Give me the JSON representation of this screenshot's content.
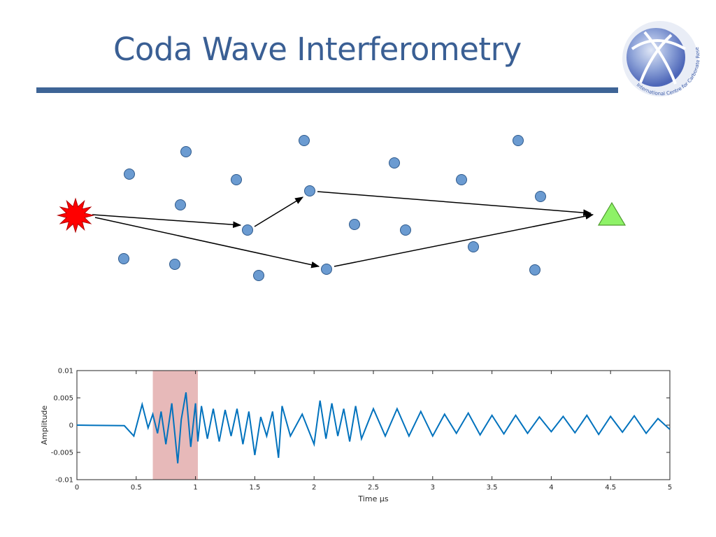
{
  "slide": {
    "title": "Coda Wave Interferometry",
    "logo_text": "International Centre for Carbonate Reservoirs"
  },
  "colors": {
    "title": "#3a5f94",
    "rule": "#3e6496",
    "scatterer_fill": "#6b9bd1",
    "scatterer_stroke": "#2f5a8c",
    "source": "#ff0000",
    "receiver": "#8ef267",
    "signal": "#0072bd",
    "window": "#e3adad"
  },
  "diagram": {
    "source_label": "source",
    "receiver_label": "receiver",
    "scatterer_count": 20
  },
  "chart_data": {
    "type": "line",
    "title": "",
    "xlabel": "Time μs",
    "ylabel": "Amplitude",
    "xlim": [
      0,
      5
    ],
    "ylim": [
      -0.01,
      0.01
    ],
    "xticks": [
      "0",
      "0.5",
      "1",
      "1.5",
      "2",
      "2.5",
      "3",
      "3.5",
      "4",
      "4.5",
      "5"
    ],
    "yticks": [
      "0.01",
      "0.005",
      "0",
      "-0.005",
      "-0.01"
    ],
    "grid": false,
    "highlight_window": {
      "x_start": 0.64,
      "x_end": 1.02
    },
    "series": [
      {
        "name": "",
        "x": [
          0,
          0.4,
          0.48,
          0.55,
          0.6,
          0.64,
          0.68,
          0.71,
          0.75,
          0.8,
          0.85,
          0.88,
          0.92,
          0.96,
          1.0,
          1.02,
          1.05,
          1.1,
          1.15,
          1.2,
          1.25,
          1.3,
          1.35,
          1.4,
          1.45,
          1.5,
          1.55,
          1.6,
          1.65,
          1.7,
          1.73,
          1.8,
          1.9,
          2.0,
          2.05,
          2.1,
          2.15,
          2.2,
          2.25,
          2.3,
          2.35,
          2.4,
          2.5,
          2.6,
          2.7,
          2.8,
          2.9,
          3.0,
          3.1,
          3.2,
          3.3,
          3.4,
          3.5,
          3.6,
          3.7,
          3.8,
          3.9,
          4.0,
          4.1,
          4.2,
          4.3,
          4.4,
          4.5,
          4.6,
          4.7,
          4.8,
          4.9,
          5.0
        ],
        "y": [
          0,
          -0.0001,
          -0.002,
          0.0038,
          -0.0005,
          0.002,
          -0.0015,
          0.0025,
          -0.0035,
          0.004,
          -0.007,
          0.001,
          0.006,
          -0.004,
          0.004,
          -0.003,
          0.0035,
          -0.0025,
          0.003,
          -0.003,
          0.0028,
          -0.002,
          0.003,
          -0.0035,
          0.0025,
          -0.0055,
          0.0015,
          -0.002,
          0.0025,
          -0.006,
          0.0035,
          -0.002,
          0.002,
          -0.0035,
          0.0045,
          -0.0025,
          0.004,
          -0.002,
          0.003,
          -0.003,
          0.0035,
          -0.0025,
          0.003,
          -0.002,
          0.003,
          -0.002,
          0.0025,
          -0.002,
          0.002,
          -0.0015,
          0.0022,
          -0.0018,
          0.0018,
          -0.0016,
          0.0018,
          -0.0015,
          0.0015,
          -0.0012,
          0.0016,
          -0.0014,
          0.0018,
          -0.0017,
          0.0016,
          -0.0013,
          0.0017,
          -0.0015,
          0.0012,
          -0.0008
        ]
      }
    ]
  }
}
